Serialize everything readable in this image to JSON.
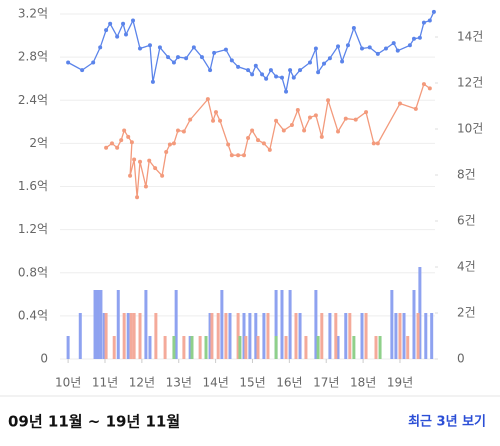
{
  "chart_data": {
    "type": "combo",
    "ylim": [
      0,
      3.2
    ],
    "yticks": [
      {
        "value": 0,
        "label": "0"
      },
      {
        "value": 0.4,
        "label": "0.4억"
      },
      {
        "value": 0.8,
        "label": "0.8억"
      },
      {
        "value": 1.2,
        "label": "1.2억"
      },
      {
        "value": 1.6,
        "label": "1.6억"
      },
      {
        "value": 2,
        "label": "2억"
      },
      {
        "value": 2.4,
        "label": "2.4억"
      },
      {
        "value": 2.8,
        "label": "2.8억"
      },
      {
        "value": 3.2,
        "label": "3.2억"
      }
    ],
    "y2lim": [
      0,
      15
    ],
    "y2ticks": [
      {
        "value": 0,
        "label": "0"
      },
      {
        "value": 2,
        "label": "2건"
      },
      {
        "value": 4,
        "label": "4건"
      },
      {
        "value": 6,
        "label": "6건"
      },
      {
        "value": 8,
        "label": "8건"
      },
      {
        "value": 10,
        "label": "10건"
      },
      {
        "value": 12,
        "label": "12건"
      },
      {
        "value": 14,
        "label": "14건"
      }
    ],
    "xlim": [
      2009.78,
      2019.95
    ],
    "xticks": [
      {
        "value": 2010,
        "label": "10년"
      },
      {
        "value": 2011,
        "label": "11년"
      },
      {
        "value": 2012,
        "label": "12년"
      },
      {
        "value": 2013,
        "label": "13년"
      },
      {
        "value": 2014,
        "label": "14년"
      },
      {
        "value": 2015,
        "label": "15년"
      },
      {
        "value": 2016,
        "label": "16년"
      },
      {
        "value": 2017,
        "label": "17년"
      },
      {
        "value": 2018,
        "label": "18년"
      },
      {
        "value": 2019,
        "label": "19년"
      }
    ],
    "grid": true,
    "series": [
      {
        "type": "bar",
        "axis": "y2",
        "color": "#8ea2f0",
        "x": [
          2010.0,
          2010.33,
          2010.73,
          2010.81,
          2010.89,
          2010.98,
          2011.36,
          2011.63,
          2012.11,
          2012.22,
          2012.93,
          2013.31,
          2013.85,
          2014.17,
          2014.39,
          2014.77,
          2014.93,
          2015.09,
          2015.31,
          2015.64,
          2015.8,
          2016.02,
          2016.29,
          2016.72,
          2017.1,
          2017.32,
          2017.53,
          2017.97,
          2018.78,
          2018.89,
          2019.11,
          2019.38,
          2019.54,
          2019.7,
          2019.86
        ],
        "values": [
          1,
          2,
          3,
          3,
          3,
          2,
          3,
          2,
          3,
          1,
          3,
          1,
          2,
          3,
          2,
          2,
          2,
          2,
          2,
          3,
          3,
          3,
          2,
          3,
          2,
          1,
          2,
          2,
          3,
          2,
          2,
          3,
          4,
          2,
          2
        ]
      },
      {
        "type": "bar",
        "axis": "y2",
        "color": "#f4aa9a",
        "x": [
          2011.03,
          2011.25,
          2011.52,
          2011.71,
          2011.79,
          2011.95,
          2012.38,
          2012.63,
          2013.14,
          2013.58,
          2013.9,
          2014.07,
          2014.28,
          2014.61,
          2014.82,
          2015.15,
          2015.42,
          2015.91,
          2016.18,
          2016.45,
          2016.88,
          2017.26,
          2017.64,
          2018.08,
          2018.35,
          2019.0,
          2019.21,
          2019.49
        ],
        "values": [
          2,
          1,
          2,
          2,
          2,
          2,
          2,
          1,
          1,
          1,
          2,
          2,
          2,
          2,
          1,
          1,
          2,
          1,
          2,
          1,
          2,
          2,
          2,
          2,
          1,
          2,
          1,
          2
        ]
      },
      {
        "type": "bar",
        "axis": "y2",
        "color": "#8fd08a",
        "x": [
          2012.87,
          2013.36,
          2013.74,
          2014.66,
          2015.64,
          2016.78,
          2017.75,
          2018.46
        ],
        "values": [
          1,
          1,
          1,
          1,
          1,
          1,
          1,
          1
        ]
      },
      {
        "type": "line",
        "color": "#5b84ea",
        "x": [
          2010.0,
          2010.38,
          2010.68,
          2010.87,
          2011.03,
          2011.14,
          2011.33,
          2011.49,
          2011.57,
          2011.76,
          2011.95,
          2012.22,
          2012.3,
          2012.49,
          2012.71,
          2012.87,
          2012.98,
          2013.2,
          2013.41,
          2013.63,
          2013.85,
          2013.96,
          2014.28,
          2014.44,
          2014.61,
          2014.88,
          2014.99,
          2015.09,
          2015.26,
          2015.37,
          2015.5,
          2015.64,
          2015.8,
          2015.91,
          2016.02,
          2016.12,
          2016.29,
          2016.56,
          2016.72,
          2016.78,
          2016.94,
          2017.1,
          2017.32,
          2017.43,
          2017.59,
          2017.75,
          2017.97,
          2018.18,
          2018.4,
          2018.62,
          2018.83,
          2018.94,
          2019.27,
          2019.38,
          2019.54,
          2019.65,
          2019.81,
          2019.92
        ],
        "values": [
          2.75,
          2.68,
          2.75,
          2.89,
          3.05,
          3.11,
          2.99,
          3.11,
          3.01,
          3.14,
          2.88,
          2.91,
          2.57,
          2.89,
          2.8,
          2.75,
          2.8,
          2.79,
          2.89,
          2.8,
          2.68,
          2.84,
          2.87,
          2.77,
          2.71,
          2.68,
          2.64,
          2.72,
          2.64,
          2.6,
          2.68,
          2.62,
          2.61,
          2.48,
          2.68,
          2.61,
          2.68,
          2.75,
          2.88,
          2.66,
          2.74,
          2.79,
          2.9,
          2.76,
          2.91,
          3.07,
          2.88,
          2.89,
          2.83,
          2.88,
          2.93,
          2.86,
          2.91,
          2.97,
          2.98,
          3.12,
          3.14,
          3.22
        ]
      },
      {
        "type": "line",
        "color": "#f39a7c",
        "x": [
          2011.03,
          2011.19,
          2011.33,
          2011.44,
          2011.52,
          2011.63,
          2011.73,
          2011.68,
          2011.79,
          2011.87,
          2011.95,
          2012.11,
          2012.2,
          2012.36,
          2012.55,
          2012.66,
          2012.76,
          2012.87,
          2012.98,
          2013.14,
          2013.31,
          2013.79,
          2013.93,
          2014.01,
          2014.12,
          2014.34,
          2014.44,
          2014.61,
          2014.77,
          2014.88,
          2014.99,
          2015.15,
          2015.31,
          2015.47,
          2015.64,
          2015.85,
          2016.07,
          2016.23,
          2016.4,
          2016.56,
          2016.72,
          2016.88,
          2017.05,
          2017.32,
          2017.53,
          2017.8,
          2018.08,
          2018.29,
          2018.4,
          2019.0,
          2019.43,
          2019.65,
          2019.81
        ],
        "values": [
          1.96,
          2.0,
          1.96,
          2.03,
          2.12,
          2.06,
          2.01,
          1.7,
          1.85,
          1.5,
          1.83,
          1.6,
          1.84,
          1.77,
          1.7,
          1.92,
          1.99,
          2.0,
          2.12,
          2.11,
          2.22,
          2.41,
          2.21,
          2.29,
          2.21,
          1.99,
          1.89,
          1.89,
          1.89,
          2.05,
          2.12,
          2.03,
          2.0,
          1.94,
          2.21,
          2.12,
          2.17,
          2.31,
          2.12,
          2.24,
          2.26,
          2.06,
          2.4,
          2.11,
          2.23,
          2.22,
          2.29,
          2.0,
          2.0,
          2.37,
          2.32,
          2.55,
          2.51
        ]
      }
    ]
  },
  "footer": {
    "period": "09년 11월 ~ 19년 11월",
    "link": "최근 3년 보기"
  }
}
